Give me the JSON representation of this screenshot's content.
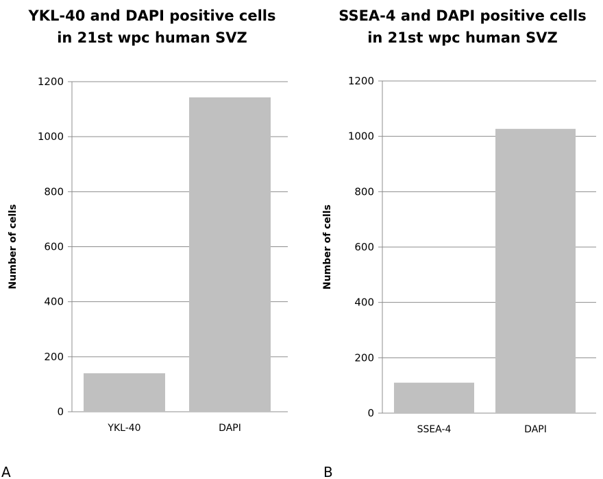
{
  "chart_data": [
    {
      "type": "bar",
      "panel_label": "A",
      "title_lines": [
        "YKL-40 and DAPI positive cells",
        "in 21st wpc human SVZ"
      ],
      "ylabel": "Number of cells",
      "xlabel": "",
      "ylim": [
        0,
        1200
      ],
      "yticks": [
        0,
        200,
        400,
        600,
        800,
        1000,
        1200
      ],
      "grid": true,
      "categories": [
        "YKL-40",
        "DAPI"
      ],
      "values": [
        140,
        1143
      ],
      "color": "#c0c0c0"
    },
    {
      "type": "bar",
      "panel_label": "B",
      "title_lines": [
        "SSEA-4 and DAPI positive cells",
        "in 21st wpc human SVZ"
      ],
      "ylabel": "Number of cells",
      "xlabel": "",
      "ylim": [
        0,
        1200
      ],
      "yticks": [
        0,
        200,
        400,
        600,
        800,
        1000,
        1200
      ],
      "grid": true,
      "categories": [
        "SSEA-4",
        "DAPI"
      ],
      "values": [
        110,
        1027
      ],
      "color": "#c0c0c0"
    }
  ]
}
